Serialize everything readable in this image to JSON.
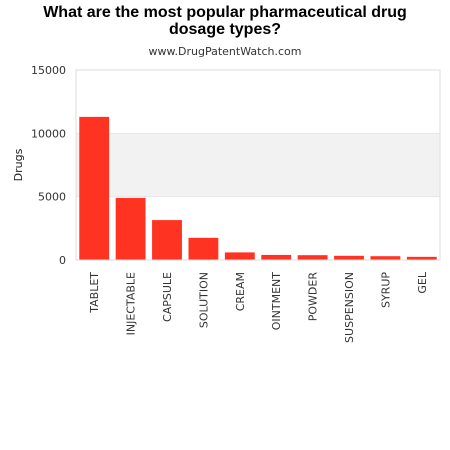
{
  "chart_data": {
    "type": "bar",
    "title_lines": [
      "What are the most popular pharmaceutical drug",
      "dosage types?"
    ],
    "subtitle": "www.DrugPatentWatch.com",
    "ylabel": "Drugs",
    "xlabel": "",
    "ylim": [
      0,
      15000
    ],
    "yticks": [
      "0",
      "5000",
      "10000",
      "15000"
    ],
    "ytick_values": [
      0,
      5000,
      10000,
      15000
    ],
    "categories": [
      "TABLET",
      "INJECTABLE",
      "CAPSULE",
      "SOLUTION",
      "CREAM",
      "OINTMENT",
      "POWDER",
      "SUSPENSION",
      "SYRUP",
      "GEL"
    ],
    "values": [
      11300,
      4900,
      3150,
      1750,
      600,
      400,
      380,
      330,
      300,
      250
    ],
    "bar_color": "#ff3322",
    "band_color": "#f2f2f2",
    "grid": true,
    "legend": "none"
  }
}
